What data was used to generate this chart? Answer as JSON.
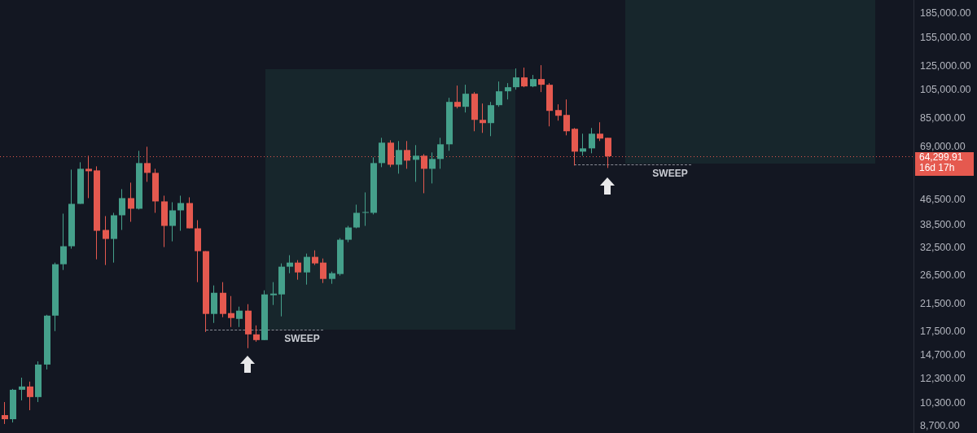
{
  "chart_data": {
    "type": "candlestick",
    "categories": [
      null,
      null,
      null,
      null,
      null,
      null,
      null,
      null,
      null,
      null,
      null,
      null,
      null,
      null,
      null,
      null,
      null,
      null,
      null,
      null,
      null,
      null,
      null,
      null,
      null,
      null,
      null,
      null,
      null,
      null,
      null,
      null,
      null,
      null,
      null,
      null,
      null,
      null,
      null,
      null,
      null,
      null,
      null,
      null,
      null,
      null,
      null,
      null,
      null,
      null,
      null,
      null,
      null,
      null,
      null,
      null,
      null,
      null,
      null,
      null,
      null,
      null,
      null,
      null,
      null,
      null,
      null,
      null,
      null,
      null,
      null,
      null,
      null,
      null,
      null,
      null,
      null,
      null,
      null,
      null,
      null,
      null,
      null,
      null,
      null,
      null,
      null,
      null,
      null,
      null,
      null,
      null,
      null,
      null,
      null,
      null,
      null,
      null,
      null,
      null,
      null,
      null,
      null,
      null,
      null,
      null,
      null,
      null,
      null
    ],
    "ohlc": [
      [
        9420,
        10380,
        8820,
        9140
      ],
      [
        9140,
        11440,
        8920,
        11370
      ],
      [
        11370,
        12440,
        10510,
        11650
      ],
      [
        11650,
        12080,
        9770,
        10770
      ],
      [
        10770,
        14040,
        10380,
        13710
      ],
      [
        13710,
        19830,
        13220,
        19710
      ],
      [
        19710,
        29210,
        17570,
        28860
      ],
      [
        28860,
        42010,
        27660,
        32980
      ],
      [
        32980,
        58240,
        32390,
        45170
      ],
      [
        45170,
        61500,
        45170,
        58590
      ],
      [
        58590,
        64560,
        47130,
        57540
      ],
      [
        57890,
        59670,
        29930,
        36990
      ],
      [
        37220,
        41250,
        28690,
        34820
      ],
      [
        34820,
        42260,
        29210,
        41500
      ],
      [
        41500,
        50380,
        37220,
        47130
      ],
      [
        47130,
        52870,
        39540,
        43560
      ],
      [
        43560,
        66950,
        43300,
        61130
      ],
      [
        61130,
        69000,
        53190,
        56850
      ],
      [
        56850,
        58590,
        42260,
        46000
      ],
      [
        46000,
        47990,
        32780,
        38360
      ],
      [
        38360,
        45720,
        34200,
        43040
      ],
      [
        43040,
        47990,
        36990,
        45440
      ],
      [
        45440,
        47410,
        37670,
        37670
      ],
      [
        37670,
        40020,
        25270,
        31800
      ],
      [
        31800,
        31800,
        17460,
        19960
      ],
      [
        19960,
        24660,
        18670,
        23350
      ],
      [
        23350,
        25270,
        19480,
        19960
      ],
      [
        20080,
        22790,
        18110,
        19360
      ],
      [
        19240,
        21070,
        18110,
        20450
      ],
      [
        20450,
        21460,
        15480,
        17150
      ],
      [
        17150,
        18330,
        16240,
        16440
      ],
      [
        16440,
        23780,
        16440,
        23070
      ],
      [
        22930,
        25270,
        21330,
        23210
      ],
      [
        23070,
        29040,
        19600,
        28340
      ],
      [
        28340,
        30860,
        27000,
        29210
      ],
      [
        29210,
        29750,
        25730,
        27160
      ],
      [
        27160,
        31230,
        24810,
        30480
      ],
      [
        30480,
        31990,
        28690,
        29040
      ],
      [
        29210,
        30110,
        25110,
        25880
      ],
      [
        25880,
        27330,
        24960,
        27000
      ],
      [
        26840,
        35030,
        26520,
        34610
      ],
      [
        34610,
        38360,
        33990,
        37900
      ],
      [
        37900,
        44900,
        37670,
        42260
      ],
      [
        42260,
        49170,
        38360,
        42520
      ],
      [
        42260,
        63780,
        41760,
        61130
      ],
      [
        61130,
        73750,
        59310,
        71120
      ],
      [
        71120,
        72420,
        59310,
        60390
      ],
      [
        60390,
        71990,
        56510,
        67350
      ],
      [
        67350,
        71990,
        58590,
        62250
      ],
      [
        62630,
        69840,
        53190,
        64560
      ],
      [
        64560,
        65340,
        48870,
        58590
      ],
      [
        58590,
        66140,
        52550,
        63020
      ],
      [
        63020,
        73750,
        58590,
        70260
      ],
      [
        70260,
        99210,
        66950,
        96250
      ],
      [
        96250,
        108640,
        91700,
        92820
      ],
      [
        92820,
        109300,
        88970,
        102260
      ],
      [
        102260,
        103510,
        77410,
        84250
      ],
      [
        84250,
        95090,
        76480,
        82240
      ],
      [
        82240,
        96250,
        74650,
        93950
      ],
      [
        93950,
        111980,
        92820,
        104130
      ],
      [
        104130,
        110630,
        98010,
        107330
      ],
      [
        107330,
        123370,
        105400,
        115430
      ],
      [
        115430,
        124120,
        107330,
        107980
      ],
      [
        107980,
        117540,
        107330,
        114030
      ],
      [
        114030,
        126390,
        103510,
        109300
      ],
      [
        109300,
        110630,
        80280,
        90050
      ],
      [
        90600,
        94520,
        83750,
        86840
      ],
      [
        87370,
        98010,
        75100,
        77410
      ],
      [
        78830,
        79310,
        60030,
        66540
      ],
      [
        66540,
        76020,
        64560,
        68170
      ],
      [
        68170,
        79310,
        65740,
        76020
      ],
      [
        76020,
        82740,
        71990,
        73310
      ],
      [
        73750,
        73750,
        58950,
        64299.91
      ],
      null,
      null,
      null,
      null,
      null,
      null,
      null,
      null,
      null,
      null,
      null,
      null,
      null,
      null,
      null,
      null,
      null,
      null,
      null,
      null,
      null,
      null,
      null,
      null,
      null,
      null,
      null,
      null,
      null,
      null,
      null,
      null,
      null,
      null,
      null,
      null
    ],
    "colors": [
      "#e5594f",
      "#45a08b",
      "#45a08b",
      "#e5594f",
      "#45a08b",
      "#45a08b",
      "#45a08b",
      "#45a08b",
      "#45a08b",
      "#45a08b",
      "#e5594f",
      "#e5594f",
      "#e5594f",
      "#45a08b",
      "#45a08b",
      "#e5594f",
      "#45a08b",
      "#e5594f",
      "#e5594f",
      "#e5594f",
      "#45a08b",
      "#45a08b",
      "#e5594f",
      "#e5594f",
      "#e5594f",
      "#45a08b",
      "#e5594f",
      "#e5594f",
      "#45a08b",
      "#e5594f",
      "#e5594f",
      "#45a08b",
      "#45a08b",
      "#45a08b",
      "#45a08b",
      "#e5594f",
      "#45a08b",
      "#e5594f",
      "#e5594f",
      "#45a08b",
      "#45a08b",
      "#45a08b",
      "#45a08b",
      "#45a08b",
      "#45a08b",
      "#45a08b",
      "#e5594f",
      "#45a08b",
      "#e5594f",
      "#45a08b",
      "#e5594f",
      "#45a08b",
      "#45a08b",
      "#45a08b",
      "#e5594f",
      "#45a08b",
      "#e5594f",
      "#e5594f",
      "#45a08b",
      "#45a08b",
      "#45a08b",
      "#45a08b",
      "#e5594f",
      "#45a08b",
      "#e5594f",
      "#e5594f",
      "#e5594f",
      "#e5594f",
      "#e5594f",
      "#45a08b",
      "#45a08b",
      "#e5594f",
      "#e5594f",
      null,
      null,
      null,
      null,
      null,
      null,
      null,
      null,
      null,
      null,
      null,
      null,
      null,
      null,
      null,
      null,
      null,
      null,
      null,
      null,
      null,
      null,
      null,
      null,
      null,
      null,
      null,
      null,
      null,
      null,
      null,
      null,
      null,
      null,
      null,
      null
    ],
    "log": true,
    "ylim": [
      8250,
      205000
    ],
    "yticks": [
      {
        "value": 8700,
        "label": "8,700.00"
      },
      {
        "value": 10300,
        "label": "10,300.00"
      },
      {
        "value": 12300,
        "label": "12,300.00"
      },
      {
        "value": 14700,
        "label": "14,700.00"
      },
      {
        "value": 17500,
        "label": "17,500.00"
      },
      {
        "value": 21500,
        "label": "21,500.00"
      },
      {
        "value": 26500,
        "label": "26,500.00"
      },
      {
        "value": 32500,
        "label": "32,500.00"
      },
      {
        "value": 38500,
        "label": "38,500.00"
      },
      {
        "value": 46500,
        "label": "46,500.00"
      },
      {
        "value": 69000,
        "label": "69,000.00"
      },
      {
        "value": 85000,
        "label": "85,000.00"
      },
      {
        "value": 105000,
        "label": "105,000.00"
      },
      {
        "value": 125000,
        "label": "125,000.00"
      },
      {
        "value": 155000,
        "label": "155,000.00"
      },
      {
        "value": 185000,
        "label": "185,000.00"
      }
    ],
    "ref_lines": [
      {
        "axis": "y",
        "value": 64299.91,
        "label": "64,299.91\n16d 17h",
        "color": "#e5594f",
        "line_style": "dotted"
      }
    ],
    "annotations": [
      "SWEEP",
      "SWEEP"
    ]
  }
}
